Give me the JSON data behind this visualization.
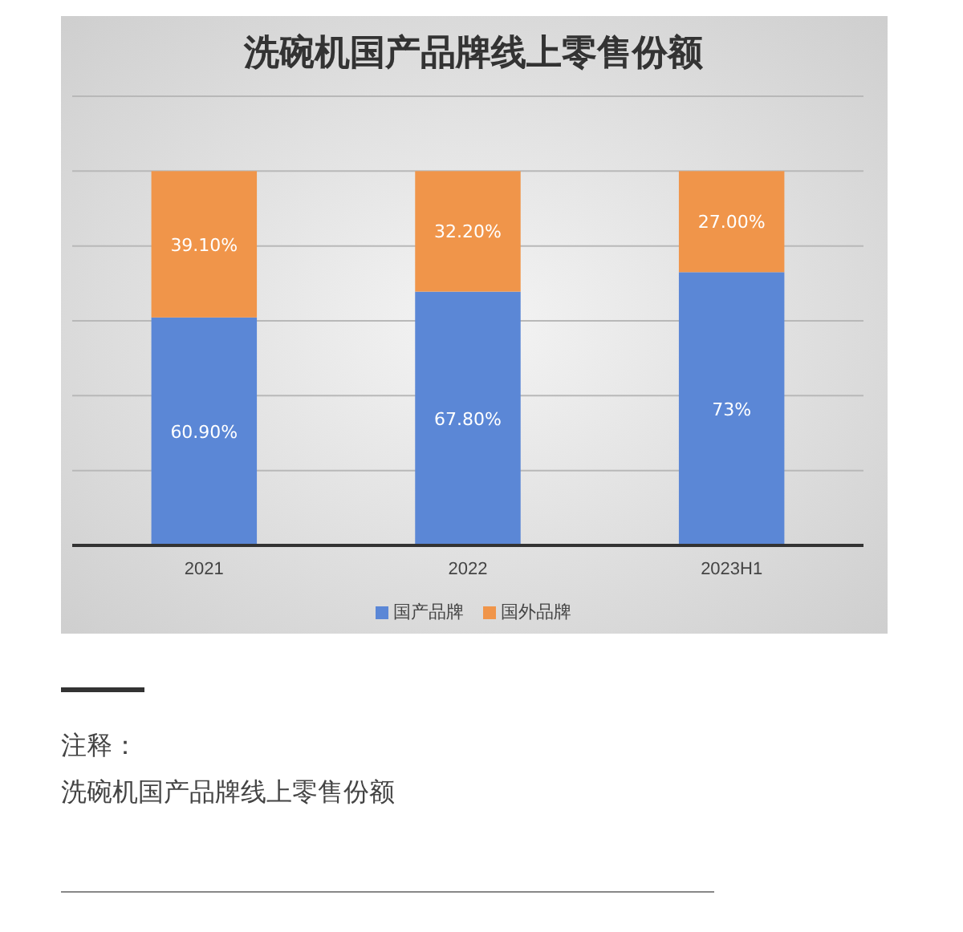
{
  "chart_data": {
    "type": "bar",
    "title": "洗碗机国产品牌线上零售份额",
    "categories": [
      "2021",
      "2022",
      "2023H1"
    ],
    "stacked": true,
    "series": [
      {
        "name": "国产品牌",
        "color": "#5b87d6",
        "values": [
          60.9,
          67.8,
          73
        ],
        "value_labels": [
          "60.90%",
          "67.80%",
          "73%"
        ]
      },
      {
        "name": "国外品牌",
        "color": "#f0954a",
        "values": [
          39.1,
          32.2,
          27.0
        ],
        "value_labels": [
          "39.10%",
          "32.20%",
          "27.00%"
        ]
      }
    ],
    "ylim": [
      0,
      120
    ],
    "yticks": [
      {
        "value": 0,
        "label": null
      },
      {
        "value": 20,
        "label": null
      },
      {
        "value": 40,
        "label": null
      },
      {
        "value": 60,
        "label": null
      },
      {
        "value": 80,
        "label": null
      },
      {
        "value": 100,
        "label": null
      },
      {
        "value": 120,
        "label": null
      }
    ],
    "tick_labels": "x",
    "grid": "y",
    "legend": "bottom",
    "annotations": [
      "注释：",
      "洗碗机国产品牌线上零售份额"
    ]
  }
}
